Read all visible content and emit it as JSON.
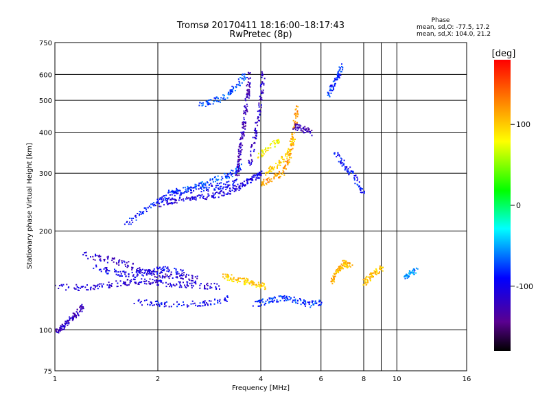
{
  "chart_data": {
    "type": "scatter",
    "title": "Tromsø 20170411 18:16:00–18:17:43",
    "subtitle": "RwPretec (8p)",
    "xlabel": "Frequency [MHz]",
    "ylabel": "Stationary phase Virtual Height [km]",
    "x_scale": "log",
    "y_scale": "log",
    "xlim": [
      1,
      16
    ],
    "ylim": [
      75,
      750
    ],
    "x_ticks": [
      1,
      2,
      4,
      6,
      8,
      10,
      16
    ],
    "y_ticks": [
      75,
      100,
      200,
      300,
      400,
      500,
      600,
      750
    ],
    "grid_x": [
      1,
      2,
      4,
      6,
      8,
      9,
      10
    ],
    "grid_y": [
      100,
      200,
      300,
      400,
      500,
      600
    ],
    "stats": {
      "heading": "Phase",
      "line_o": "mean, sd,O: -77.5, 17.2",
      "line_x": "mean, sd,X: 104.0, 21.2"
    },
    "colorbar": {
      "label": "[deg]",
      "ticks": [
        100,
        0,
        -100
      ],
      "range": [
        -180,
        180
      ]
    },
    "traces": [
      {
        "f": [
          1.0,
          1.05,
          1.1,
          1.15,
          1.2
        ],
        "h": [
          100,
          102,
          108,
          112,
          118
        ],
        "phase": -120
      },
      {
        "f": [
          1.0,
          1.2,
          1.4,
          1.6,
          1.8,
          2.0,
          2.3,
          2.6,
          3.0
        ],
        "h": [
          136,
          135,
          137,
          140,
          141,
          140,
          138,
          137,
          136
        ],
        "phase": -110
      },
      {
        "f": [
          1.2,
          1.4,
          1.6,
          1.8,
          2.0,
          2.3,
          2.6
        ],
        "h": [
          170,
          165,
          160,
          152,
          148,
          146,
          144
        ],
        "phase": -115
      },
      {
        "f": [
          1.3,
          1.5,
          1.7,
          1.9,
          2.1,
          2.4
        ],
        "h": [
          155,
          150,
          147,
          150,
          155,
          148
        ],
        "phase": -100
      },
      {
        "f": [
          1.7,
          2.0,
          2.4,
          2.8,
          3.2
        ],
        "h": [
          122,
          121,
          120,
          122,
          125
        ],
        "phase": -95
      },
      {
        "f": [
          3.1,
          3.3,
          3.6,
          3.9,
          4.1
        ],
        "h": [
          147,
          144,
          141,
          138,
          136
        ],
        "phase": 100
      },
      {
        "f": [
          3.8,
          4.2,
          4.6,
          5.0,
          5.5,
          6.0
        ],
        "h": [
          120,
          123,
          126,
          124,
          120,
          122
        ],
        "phase": -80
      },
      {
        "f": [
          1.6,
          1.8,
          2.0,
          2.2,
          2.5,
          2.8,
          3.1,
          3.4
        ],
        "h": [
          210,
          230,
          248,
          260,
          268,
          272,
          276,
          284
        ],
        "phase": -90
      },
      {
        "f": [
          2.0,
          2.2,
          2.5,
          2.8,
          3.1,
          3.4,
          3.6,
          3.8,
          4.0
        ],
        "h": [
          242,
          248,
          252,
          256,
          262,
          272,
          282,
          292,
          300
        ],
        "phase": -105
      },
      {
        "f": [
          2.1,
          2.4,
          2.7,
          3.0,
          3.3,
          3.5
        ],
        "h": [
          262,
          268,
          278,
          290,
          302,
          318
        ],
        "phase": -75
      },
      {
        "f": [
          3.4,
          3.45,
          3.5,
          3.55,
          3.6,
          3.65,
          3.7
        ],
        "h": [
          300,
          340,
          380,
          420,
          470,
          530,
          600
        ],
        "phase": -125
      },
      {
        "f": [
          3.7,
          3.8,
          3.9,
          4.0,
          4.05
        ],
        "h": [
          320,
          380,
          440,
          520,
          610
        ],
        "phase": -115
      },
      {
        "f": [
          2.6,
          2.9,
          3.2,
          3.4,
          3.6
        ],
        "h": [
          485,
          500,
          520,
          560,
          600
        ],
        "phase": -70
      },
      {
        "f": [
          4.0,
          4.3,
          4.6,
          4.8,
          4.9,
          5.0,
          5.1
        ],
        "h": [
          280,
          290,
          300,
          330,
          370,
          420,
          480
        ],
        "phase": 120
      },
      {
        "f": [
          4.1,
          4.4,
          4.7,
          5.0
        ],
        "h": [
          300,
          318,
          340,
          380
        ],
        "phase": 95
      },
      {
        "f": [
          3.9,
          4.2,
          4.5
        ],
        "h": [
          340,
          360,
          380
        ],
        "phase": 80
      },
      {
        "f": [
          5.0,
          5.3,
          5.6
        ],
        "h": [
          420,
          410,
          400
        ],
        "phase": -130
      },
      {
        "f": [
          6.4,
          6.6,
          6.8,
          7.0,
          7.3
        ],
        "h": [
          140,
          150,
          155,
          160,
          158
        ],
        "phase": 110
      },
      {
        "f": [
          8.0,
          8.3,
          8.6,
          9.0
        ],
        "h": [
          140,
          145,
          150,
          155
        ],
        "phase": 105
      },
      {
        "f": [
          10.5,
          10.9,
          11.4
        ],
        "h": [
          145,
          150,
          152
        ],
        "phase": -60
      },
      {
        "f": [
          6.5,
          7.0,
          7.5,
          8.0
        ],
        "h": [
          350,
          320,
          290,
          260
        ],
        "phase": -90
      },
      {
        "f": [
          6.3,
          6.5,
          6.7,
          6.9
        ],
        "h": [
          520,
          560,
          600,
          640
        ],
        "phase": -80
      }
    ]
  }
}
